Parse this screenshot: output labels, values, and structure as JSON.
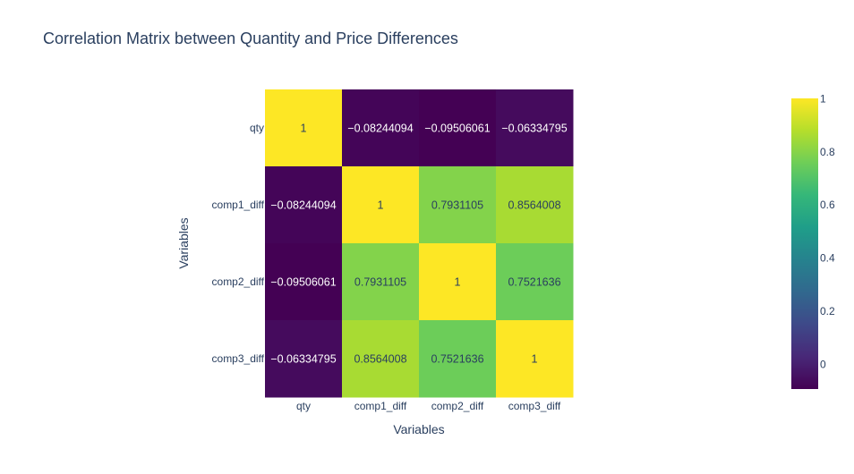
{
  "chart_data": {
    "type": "heatmap",
    "title": "Correlation Matrix between Quantity and Price Differences",
    "xlabel": "Variables",
    "ylabel": "Variables",
    "x_categories": [
      "qty",
      "comp1_diff",
      "comp2_diff",
      "comp3_diff"
    ],
    "y_categories": [
      "qty",
      "comp1_diff",
      "comp2_diff",
      "comp3_diff"
    ],
    "z": [
      [
        1,
        -0.08244094,
        -0.09506061,
        -0.06334795
      ],
      [
        -0.08244094,
        1,
        0.7931105,
        0.8564008
      ],
      [
        -0.09506061,
        0.7931105,
        1,
        0.7521636
      ],
      [
        -0.06334795,
        0.8564008,
        0.7521636,
        1
      ]
    ],
    "text": [
      [
        "1",
        "−0.08244094",
        "−0.09506061",
        "−0.06334795"
      ],
      [
        "−0.08244094",
        "1",
        "0.7931105",
        "0.8564008"
      ],
      [
        "−0.09506061",
        "0.7931105",
        "1",
        "0.7521636"
      ],
      [
        "−0.06334795",
        "0.8564008",
        "0.7521636",
        "1"
      ]
    ],
    "colorscale": "Viridis",
    "zrange": [
      -0.09506061,
      1
    ],
    "colorbar_ticks": [
      "0",
      "0.2",
      "0.4",
      "0.6",
      "0.8",
      "1"
    ],
    "colorbar_tick_values": [
      0,
      0.2,
      0.4,
      0.6,
      0.8,
      1
    ]
  }
}
